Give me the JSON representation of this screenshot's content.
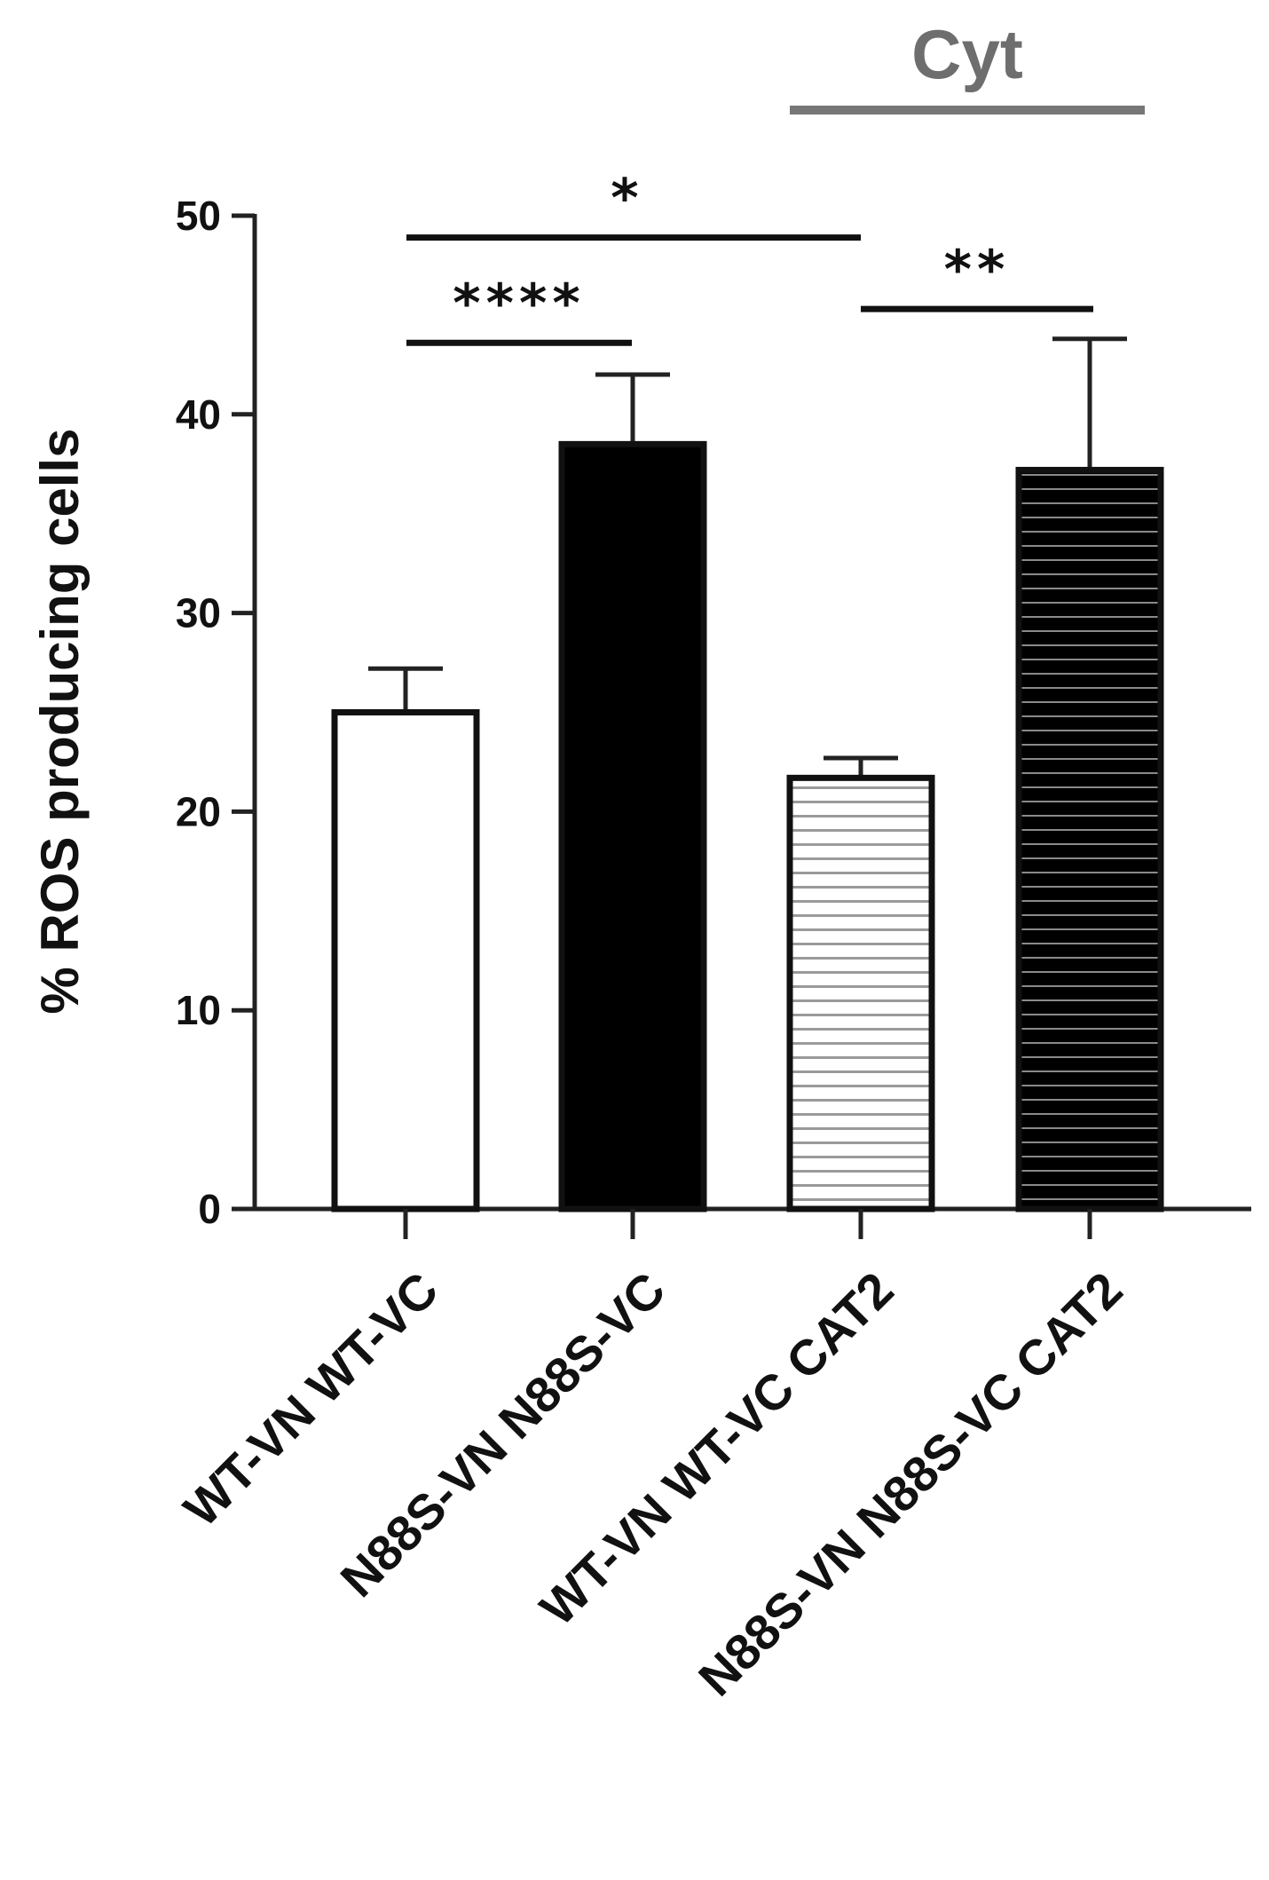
{
  "chart_data": {
    "type": "bar",
    "ylabel": "% ROS producing cells",
    "xlabel": "",
    "ylim": [
      0,
      50
    ],
    "yticks": [
      0,
      10,
      20,
      30,
      40,
      50
    ],
    "grid": false,
    "categories": [
      "WT-VN WT-VC",
      "N88S-VN N88S-VC",
      "WT-VN WT-VC CAT2",
      "N88S-VN N88S-VC CAT2"
    ],
    "values": [
      25,
      38.5,
      21.7,
      37.2
    ],
    "errors": [
      2.2,
      3.5,
      1.0,
      6.6
    ],
    "bar_styles": [
      "white",
      "black",
      "white-striped",
      "black-striped"
    ],
    "group_annotation": {
      "label": "Cyt",
      "categories": [
        2,
        3
      ],
      "color": "#777777"
    },
    "significance": [
      {
        "from": 0,
        "to": 1,
        "label": "****",
        "y": 43.6
      },
      {
        "from": 0,
        "to": 2,
        "label": "*",
        "y": 48.9
      },
      {
        "from": 2,
        "to": 3,
        "label": "**",
        "y": 45.3
      }
    ]
  }
}
